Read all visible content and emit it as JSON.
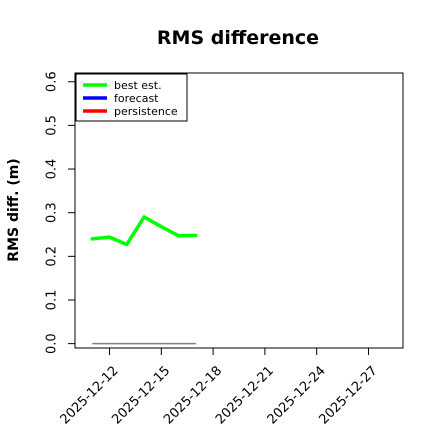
{
  "chart_data": {
    "type": "line",
    "title": "RMS difference",
    "xlabel": "",
    "ylabel": "RMS diff. (m)",
    "ylim": [
      -0.01,
      0.62
    ],
    "yticks": [
      "0.0",
      "0.1",
      "0.2",
      "0.3",
      "0.4",
      "0.5",
      "0.6"
    ],
    "xlim": [
      "2025-12-10",
      "2025-12-29"
    ],
    "xticks": [
      {
        "date": "2025-12-12",
        "label": "2025-12-12",
        "color": "#000000"
      },
      {
        "date": "2025-12-15",
        "label": "2025-12-15",
        "color": "#000000"
      },
      {
        "date": "2025-12-18",
        "label": "2025-12-18",
        "color": "#228B22"
      },
      {
        "date": "2025-12-21",
        "label": "2025-12-21",
        "color": "#000000"
      },
      {
        "date": "2025-12-24",
        "label": "2025-12-24",
        "color": "#000000"
      },
      {
        "date": "2025-12-27",
        "label": "2025-12-27",
        "color": "#000000"
      }
    ],
    "legend_position": "top-left",
    "series": [
      {
        "name": "best est.",
        "color": "#00ff00",
        "x": [
          "2025-12-11",
          "2025-12-12",
          "2025-12-13",
          "2025-12-14",
          "2025-12-15",
          "2025-12-16",
          "2025-12-17"
        ],
        "y": [
          0.24,
          0.244,
          0.227,
          0.29,
          0.268,
          0.247,
          0.248
        ]
      },
      {
        "name": "forecast",
        "color": "#0000ff",
        "x": [],
        "y": []
      },
      {
        "name": "persistence",
        "color": "#ff0000",
        "x": [],
        "y": []
      }
    ],
    "reference_line": {
      "color": "#808080",
      "x": [
        "2025-12-11",
        "2025-12-17"
      ],
      "y": [
        0.0,
        0.0
      ]
    }
  }
}
